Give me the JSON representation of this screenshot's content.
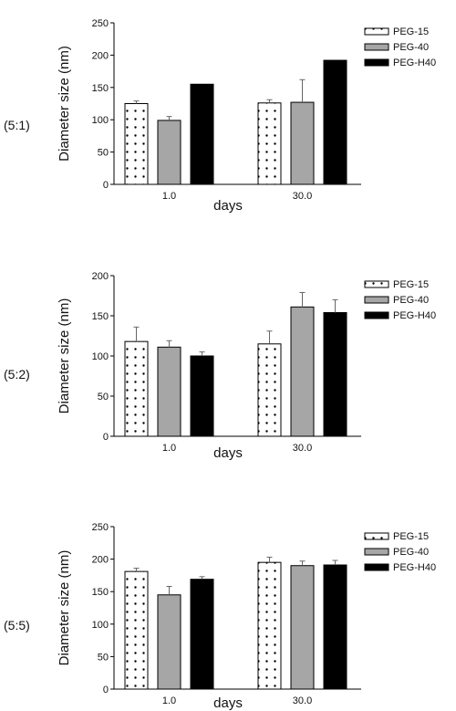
{
  "colors": {
    "PEG-15": "#ffffff",
    "PEG-40": "#a6a6a6",
    "PEG-H40": "#000000",
    "axis": "#000000",
    "error": "#666666"
  },
  "chart_data": [
    {
      "type": "bar",
      "panel_label": "(5:1)",
      "categories": [
        "1.0",
        "30.0"
      ],
      "series": [
        {
          "name": "PEG-15",
          "values": [
            125,
            126
          ],
          "errors": [
            4,
            5
          ],
          "pattern": "dotted-white"
        },
        {
          "name": "PEG-40",
          "values": [
            99,
            127
          ],
          "errors": [
            6,
            35
          ],
          "pattern": "solid-gray"
        },
        {
          "name": "PEG-H40",
          "values": [
            155,
            192
          ],
          "errors": [
            0,
            0
          ],
          "pattern": "solid-black"
        }
      ],
      "xlabel": "days",
      "ylabel": "Diameter size (nm)",
      "ylim": [
        0,
        250
      ],
      "yticks": [
        "0",
        "50",
        "100",
        "150",
        "200",
        "250"
      ],
      "legend_position": "right"
    },
    {
      "type": "bar",
      "panel_label": "(5:2)",
      "categories": [
        "1.0",
        "30.0"
      ],
      "series": [
        {
          "name": "PEG-15",
          "values": [
            118,
            115
          ],
          "errors": [
            18,
            16
          ],
          "pattern": "dotted-white"
        },
        {
          "name": "PEG-40",
          "values": [
            111,
            161
          ],
          "errors": [
            8,
            18
          ],
          "pattern": "solid-gray"
        },
        {
          "name": "PEG-H40",
          "values": [
            100,
            154
          ],
          "errors": [
            5,
            16
          ],
          "pattern": "solid-black"
        }
      ],
      "xlabel": "days",
      "ylabel": "Diameter size (nm)",
      "ylim": [
        0,
        200
      ],
      "yticks": [
        "0",
        "50",
        "100",
        "150",
        "200"
      ],
      "legend_position": "right"
    },
    {
      "type": "bar",
      "panel_label": "(5:5)",
      "categories": [
        "1.0",
        "30.0"
      ],
      "series": [
        {
          "name": "PEG-15",
          "values": [
            181,
            195
          ],
          "errors": [
            5,
            8
          ],
          "pattern": "dotted-white"
        },
        {
          "name": "PEG-40",
          "values": [
            145,
            190
          ],
          "errors": [
            13,
            7
          ],
          "pattern": "solid-gray"
        },
        {
          "name": "PEG-H40",
          "values": [
            169,
            191
          ],
          "errors": [
            4,
            7
          ],
          "pattern": "solid-black"
        }
      ],
      "xlabel": "days",
      "ylabel": "Diameter size (nm)",
      "ylim": [
        0,
        250
      ],
      "yticks": [
        "0",
        "50",
        "100",
        "150",
        "200",
        "250"
      ],
      "legend_position": "right"
    }
  ]
}
